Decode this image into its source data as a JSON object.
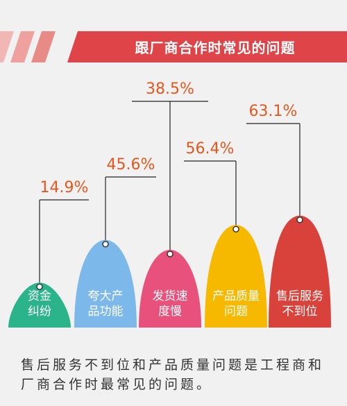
{
  "chart_data": {
    "type": "dome",
    "title": "跟厂商合作时常见的问题",
    "categories": [
      "资金纠纷",
      "夸大产品功能",
      "发货速度慢",
      "产品质量问题",
      "售后服务不到位"
    ],
    "values": [
      14.9,
      45.6,
      38.5,
      56.4,
      63.1
    ],
    "value_labels": [
      "14.9%",
      "45.6%",
      "38.5%",
      "56.4%",
      "63.1%"
    ],
    "colors": [
      "#2bb48a",
      "#7cb8ea",
      "#e8517c",
      "#f6b900",
      "#d8423a"
    ],
    "note": "售后服务不到位和产品质量问题是工程商和厂商合作时最常见的问题。"
  }
}
